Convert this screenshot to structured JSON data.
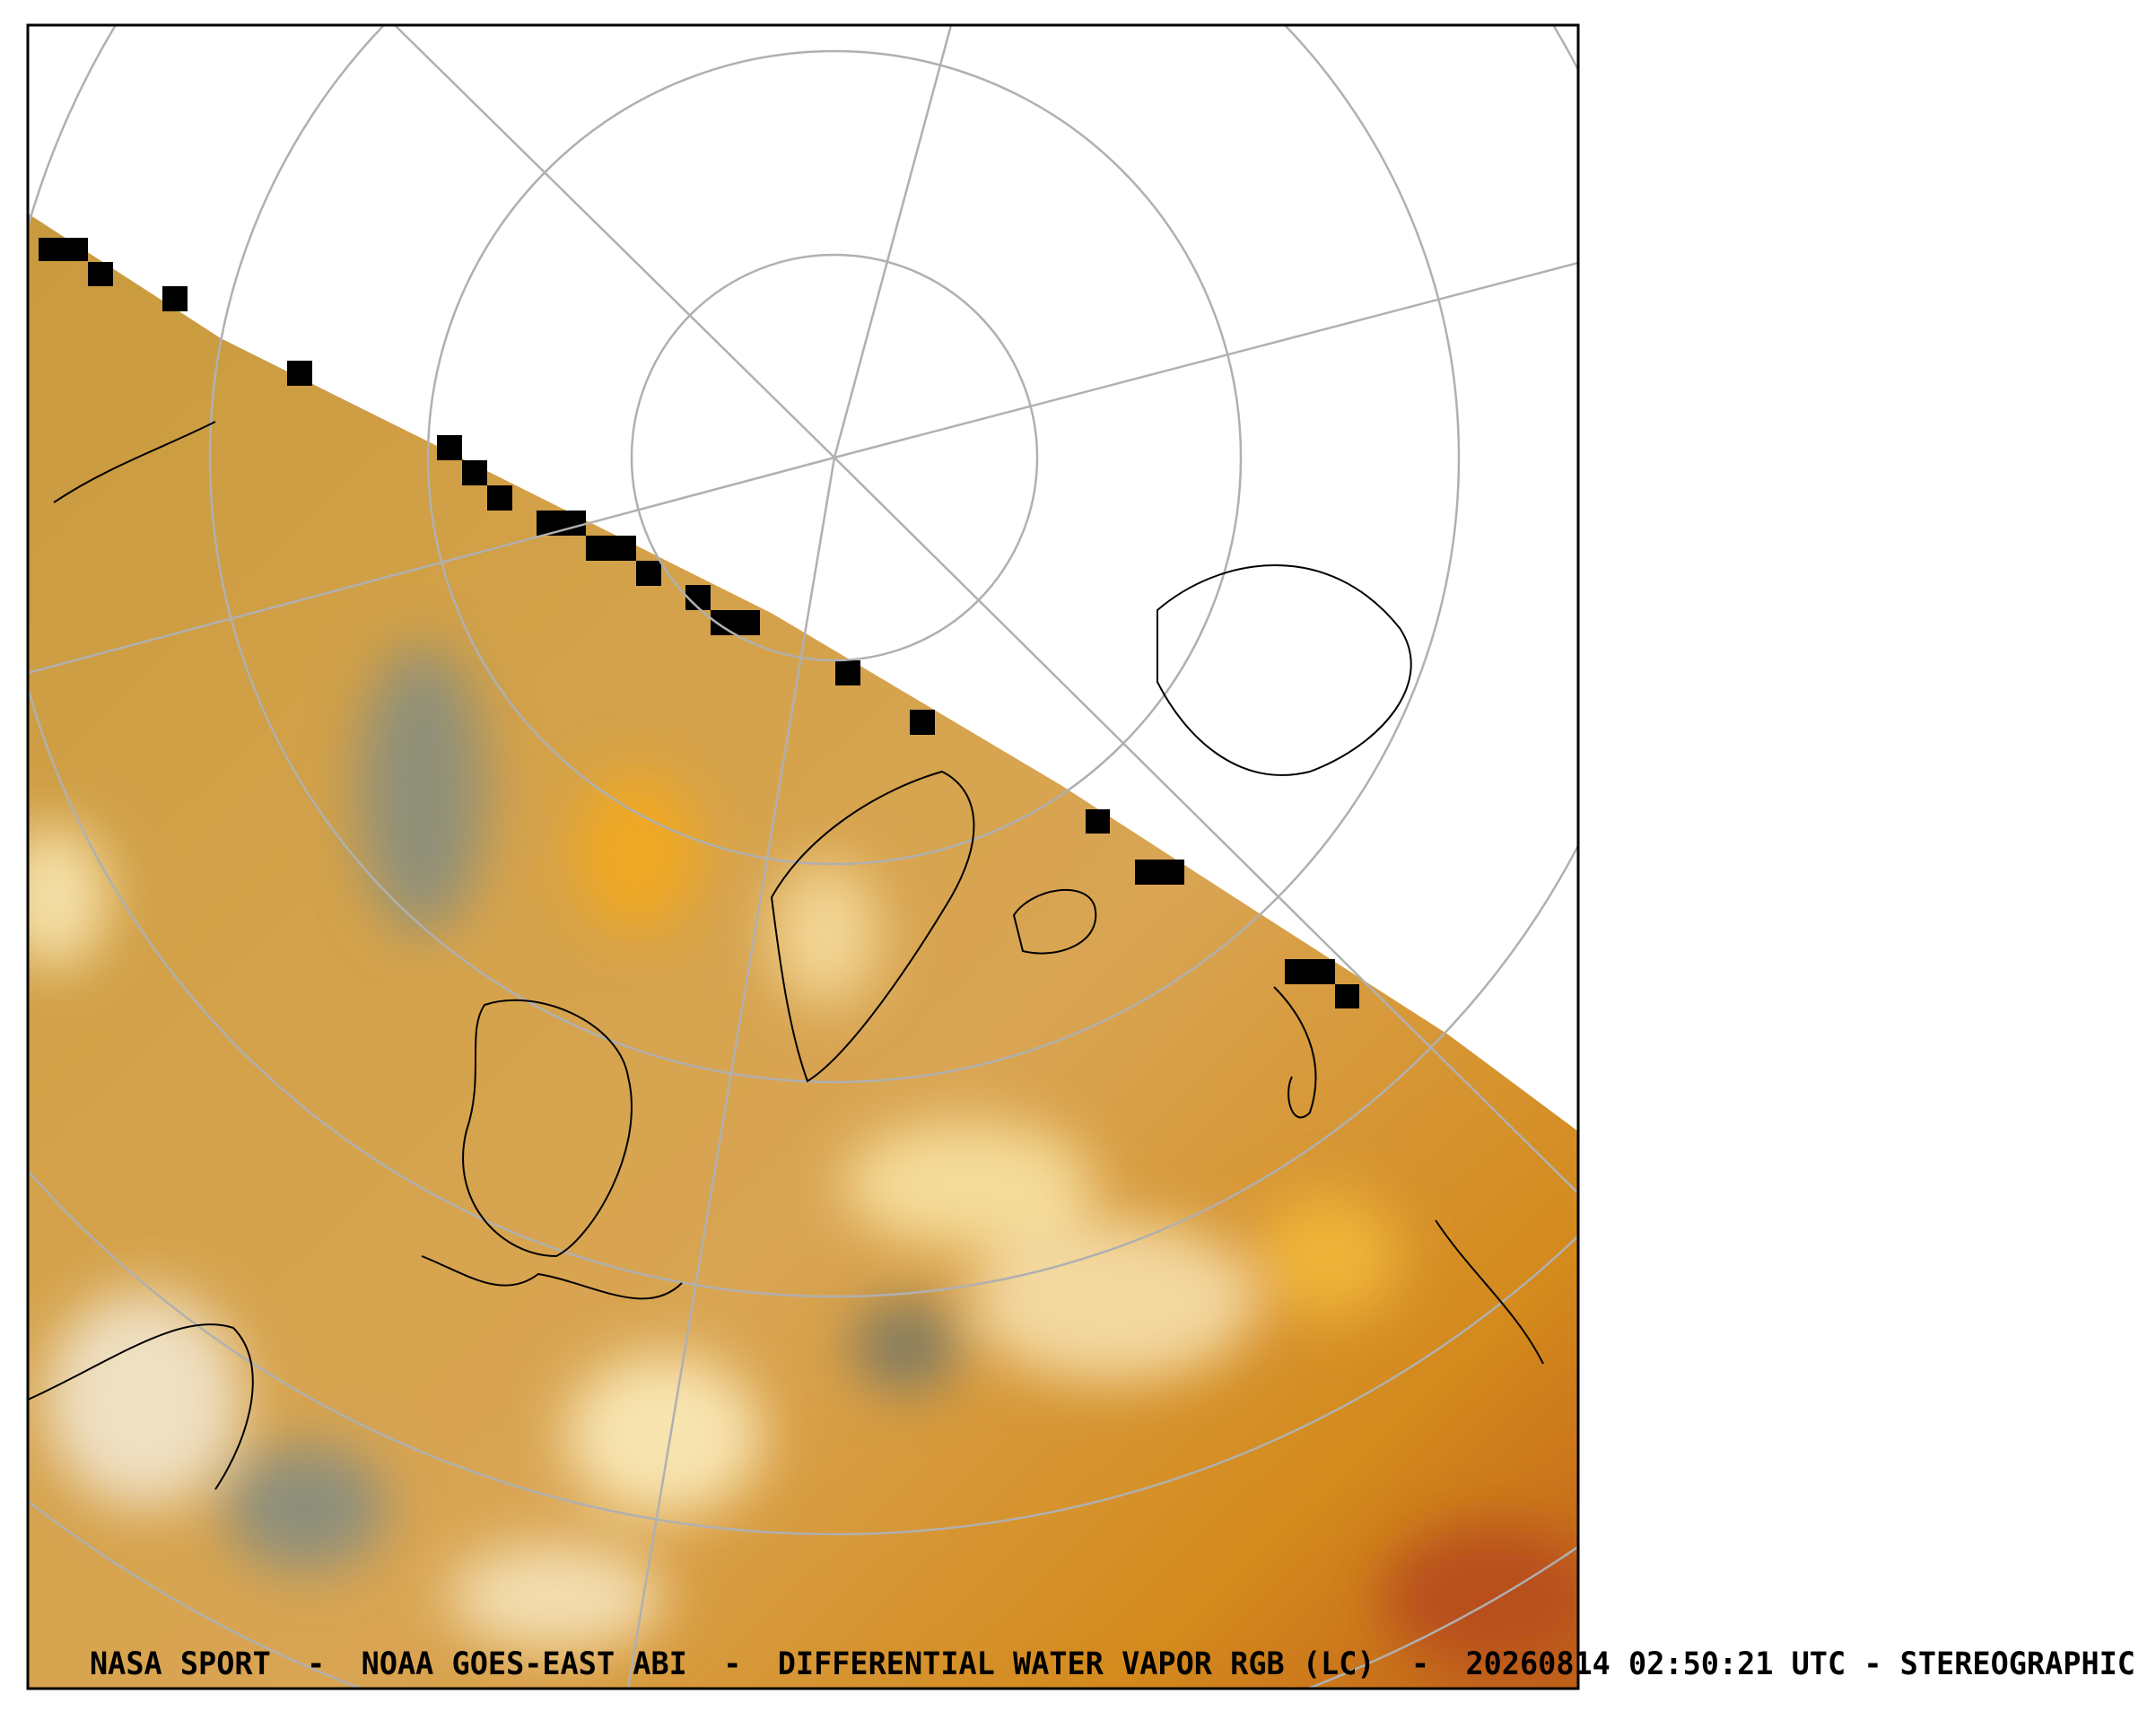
{
  "caption": "NASA SPORT  -  NOAA GOES-EAST ABI  -  DIFFERENTIAL WATER VAPOR RGB (LC)  -  20260814 02:50:21 UTC - STEREOGRAPHIC"
}
